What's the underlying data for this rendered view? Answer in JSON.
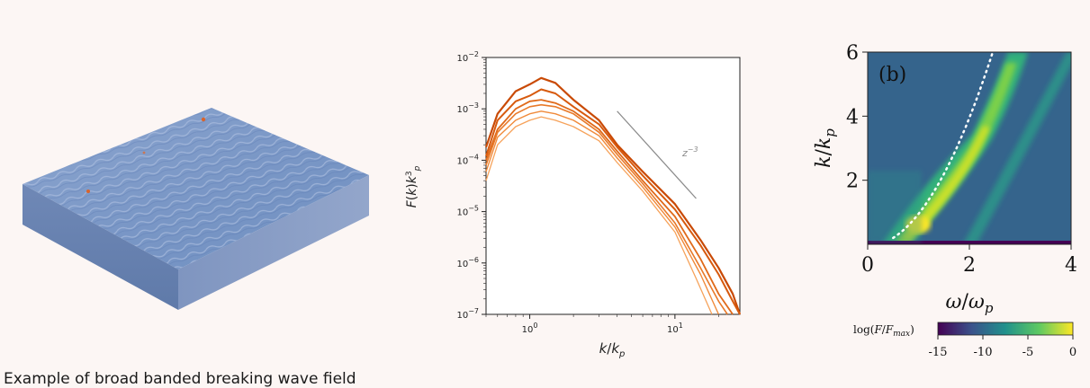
{
  "caption": "Example of broad banded breaking wave field",
  "chart_data": [
    {
      "type": "line",
      "xlabel": "k/k_p",
      "ylabel": "F(k)k_p^3",
      "xscale": "log",
      "yscale": "log",
      "xlim": [
        0.5,
        28
      ],
      "ylim": [
        1e-07,
        0.01
      ],
      "x_ticks": [
        "10^0",
        "10^1"
      ],
      "y_ticks": [
        "10^-2",
        "10^-3",
        "10^-4",
        "10^-5",
        "10^-6",
        "10^-7"
      ],
      "annotation": "z^-3",
      "reference_line": {
        "x": [
          4,
          14
        ],
        "y": [
          0.0009,
          1.8e-05
        ]
      },
      "grid": false,
      "series": [
        {
          "color": "#c94a06",
          "width": 2.2,
          "x": [
            0.5,
            0.6,
            0.8,
            1.0,
            1.2,
            1.5,
            2,
            3,
            4,
            6,
            10,
            15,
            20,
            25,
            28
          ],
          "y": [
            0.00018,
            0.0008,
            0.0022,
            0.003,
            0.004,
            0.0032,
            0.0015,
            0.0006,
            0.0002,
            6e-05,
            1.4e-05,
            2.8e-06,
            8e-07,
            2.5e-07,
            1e-07
          ]
        },
        {
          "color": "#d75a0e",
          "width": 2.0,
          "x": [
            0.5,
            0.6,
            0.8,
            1.0,
            1.2,
            1.5,
            2,
            3,
            4,
            6,
            10,
            15,
            20,
            25,
            28
          ],
          "y": [
            0.00012,
            0.0006,
            0.0014,
            0.0018,
            0.0024,
            0.002,
            0.0011,
            0.0005,
            0.00018,
            5e-05,
            1.1e-05,
            2.2e-06,
            6e-07,
            1.8e-07,
            1e-07
          ]
        },
        {
          "color": "#e06a1a",
          "width": 1.8,
          "x": [
            0.5,
            0.6,
            0.8,
            1.0,
            1.2,
            1.5,
            2,
            3,
            4,
            6,
            10,
            15,
            20,
            25
          ],
          "y": [
            0.0001,
            0.0004,
            0.001,
            0.0014,
            0.0015,
            0.0013,
            0.0009,
            0.0004,
            0.00015,
            4e-05,
            8e-06,
            1.2e-06,
            2.5e-07,
            1e-07
          ]
        },
        {
          "color": "#e87a2a",
          "width": 1.6,
          "x": [
            0.5,
            0.6,
            0.8,
            1.0,
            1.2,
            1.5,
            2,
            3,
            4,
            6,
            10,
            15,
            20,
            23
          ],
          "y": [
            8e-05,
            0.00035,
            0.0008,
            0.0011,
            0.0012,
            0.0011,
            0.0008,
            0.00035,
            0.00013,
            3.5e-05,
            6e-06,
            8e-07,
            1.8e-07,
            1e-07
          ]
        },
        {
          "color": "#f08a3a",
          "width": 1.4,
          "x": [
            0.5,
            0.6,
            0.8,
            1.0,
            1.2,
            1.5,
            2,
            3,
            4,
            6,
            10,
            15,
            20
          ],
          "y": [
            6e-05,
            0.00028,
            0.0006,
            0.0008,
            0.0009,
            0.0008,
            0.0006,
            0.0003,
            0.00011,
            3e-05,
            5e-06,
            6e-07,
            1e-07
          ]
        },
        {
          "color": "#f6a25a",
          "width": 1.3,
          "x": [
            0.5,
            0.6,
            0.8,
            1.0,
            1.2,
            1.5,
            2,
            3,
            4,
            6,
            10,
            14,
            18
          ],
          "y": [
            4e-05,
            0.0002,
            0.00045,
            0.0006,
            0.0007,
            0.0006,
            0.00045,
            0.00024,
            9e-05,
            2.5e-05,
            4e-06,
            5e-07,
            1e-07
          ]
        }
      ]
    },
    {
      "type": "heatmap",
      "panel_label": "(b)",
      "xlabel": "ω/ω_p",
      "ylabel": "k/k_p",
      "xlim": [
        0,
        4
      ],
      "ylim": [
        0,
        6
      ],
      "x_ticks": [
        "0",
        "2",
        "4"
      ],
      "y_ticks": [
        "2",
        "4",
        "6"
      ],
      "colorbar": {
        "label": "log(F/F_max)",
        "ticks": [
          "-15",
          "-10",
          "-5",
          "0"
        ],
        "range": [
          -15,
          0
        ]
      },
      "dispersion_line": "dotted white, k = ω²"
    }
  ]
}
